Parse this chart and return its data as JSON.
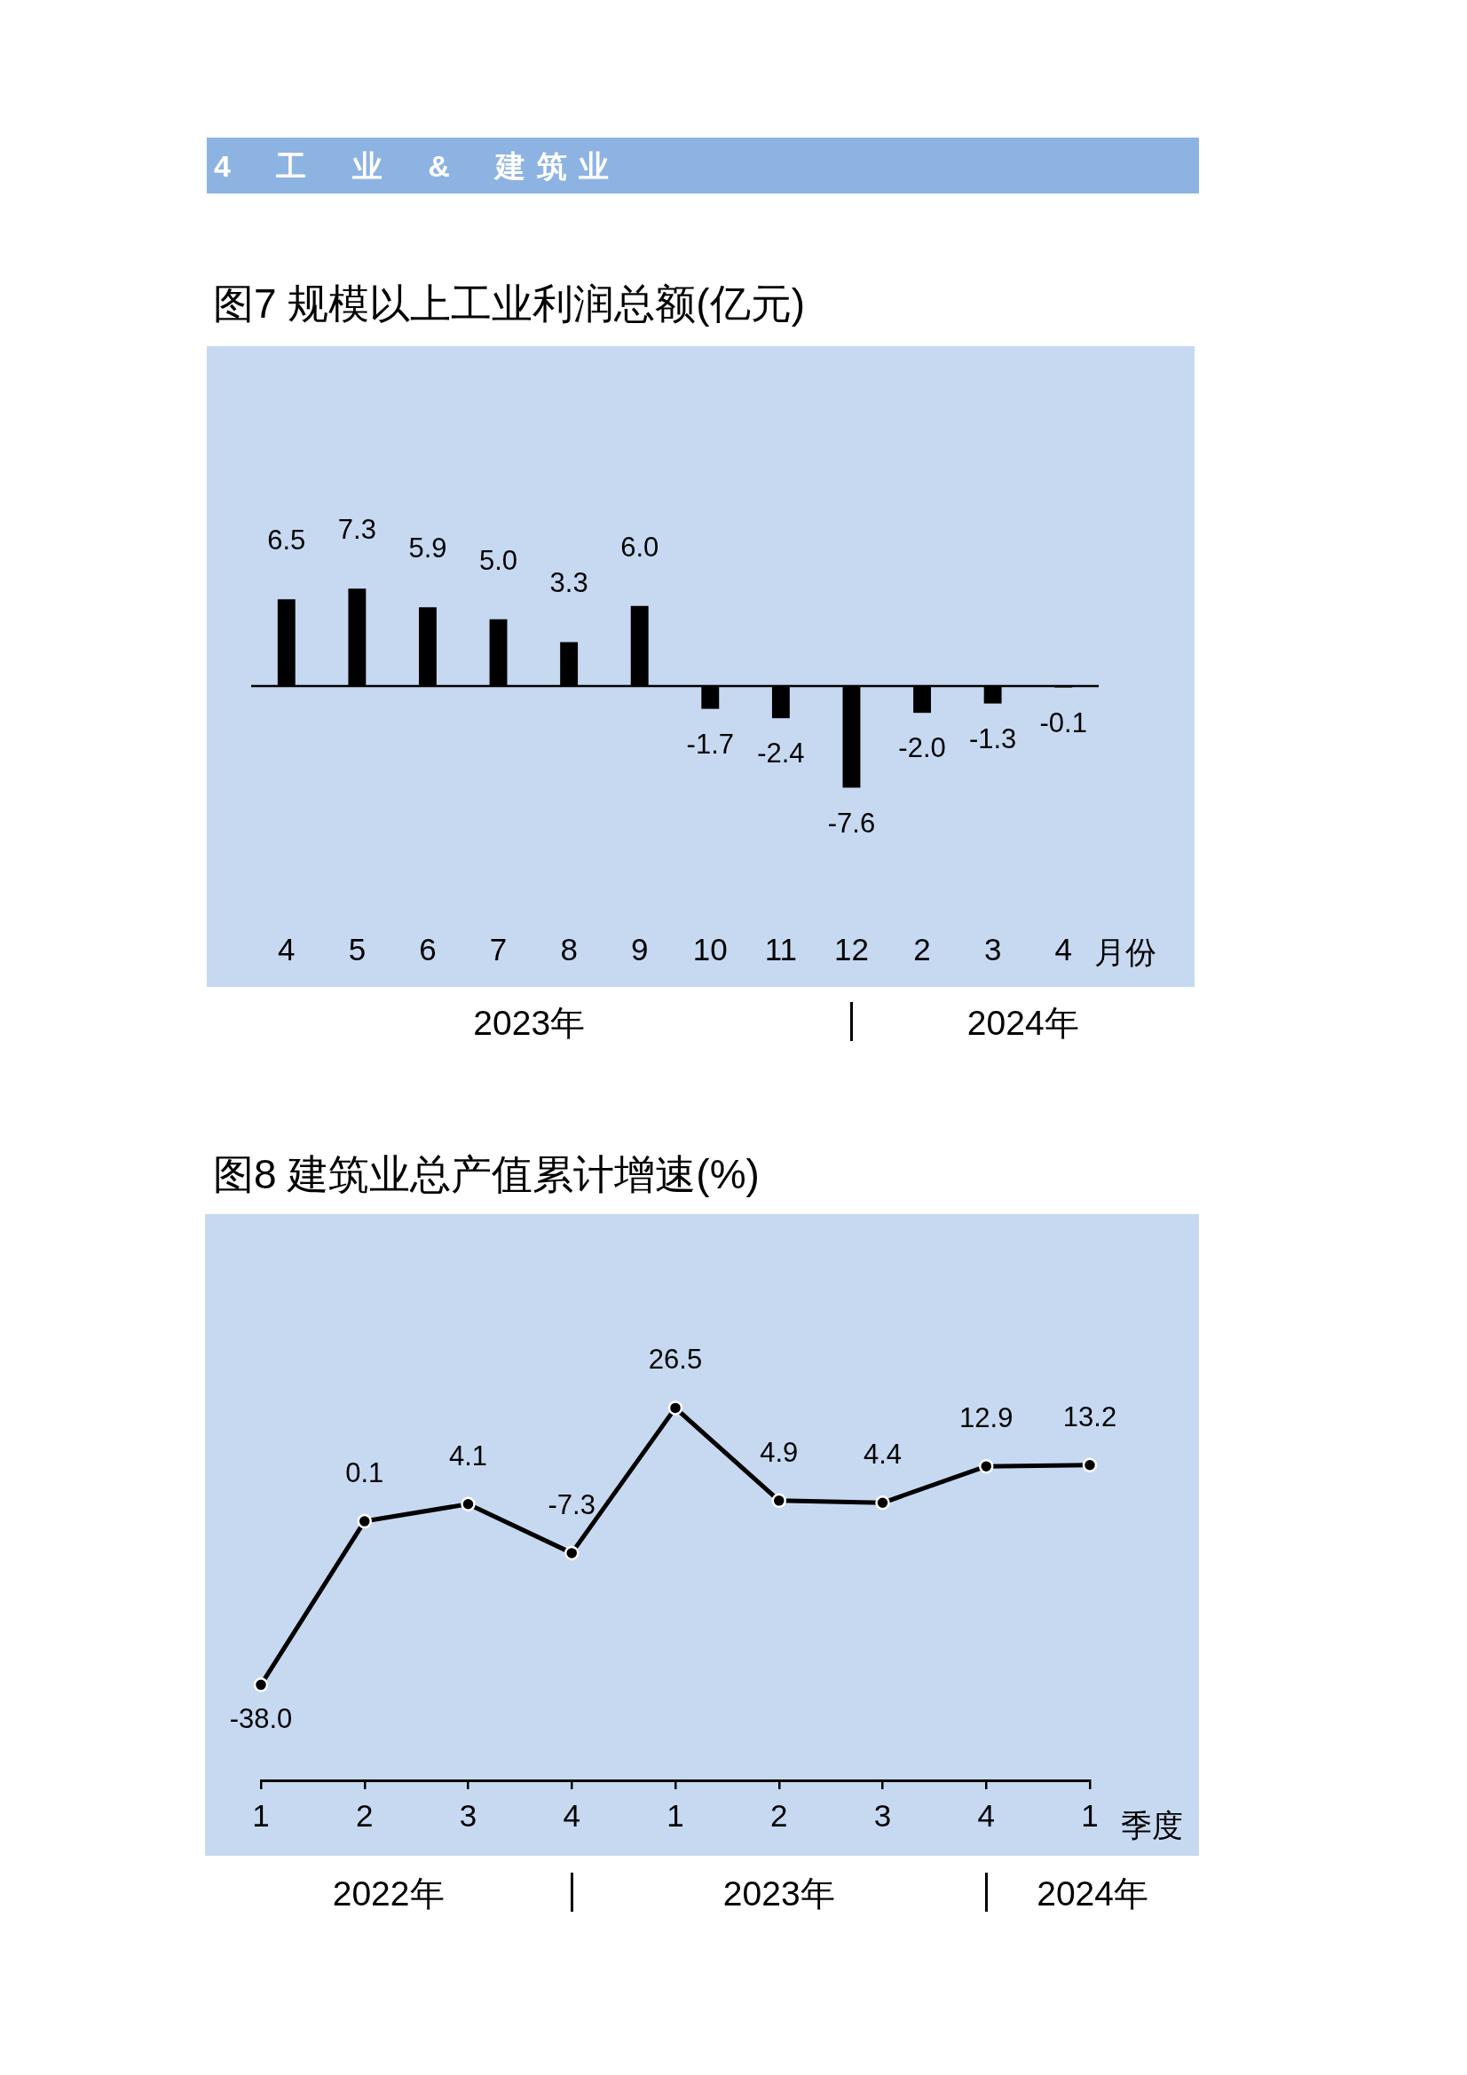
{
  "chart_data": [
    {
      "type": "other",
      "title": "4 工 业 & 建筑业"
    },
    {
      "type": "bar",
      "title": "图7 规模以上工业利润总额(亿元)",
      "xlabel": "月份",
      "categories": [
        "4",
        "5",
        "6",
        "7",
        "8",
        "9",
        "10",
        "11",
        "12",
        "2",
        "3",
        "4"
      ],
      "values": [
        6.5,
        7.3,
        5.9,
        5.0,
        3.3,
        6.0,
        -1.7,
        -2.4,
        -7.6,
        -2.0,
        -1.3,
        -0.1
      ],
      "value_labels": [
        "6.5",
        "7.3",
        "5.9",
        "5.0",
        "3.3",
        "6.0",
        "-1.7",
        "-2.4",
        "-7.6",
        "-2.0",
        "-1.3",
        "-0.1"
      ],
      "color": "#000000",
      "tick_labels": "x",
      "annotations": [
        "2023年",
        "2024年"
      ]
    },
    {
      "type": "line",
      "title": "图8 建筑业总产值累计增速(%)",
      "xlabel": "季度",
      "categories": [
        "1",
        "2",
        "3",
        "4",
        "1",
        "2",
        "3",
        "4",
        "1"
      ],
      "values": [
        -38.0,
        0.1,
        4.1,
        -7.3,
        26.5,
        4.9,
        4.4,
        12.9,
        13.2
      ],
      "value_labels": [
        "-38.0",
        "0.1",
        "4.1",
        "-7.3",
        "26.5",
        "4.9",
        "4.4",
        "12.9",
        "13.2"
      ],
      "color": "#000000",
      "marker": "circle",
      "tick_labels": "x",
      "annotations": [
        "2022年",
        "2023年",
        "2024年"
      ]
    }
  ]
}
